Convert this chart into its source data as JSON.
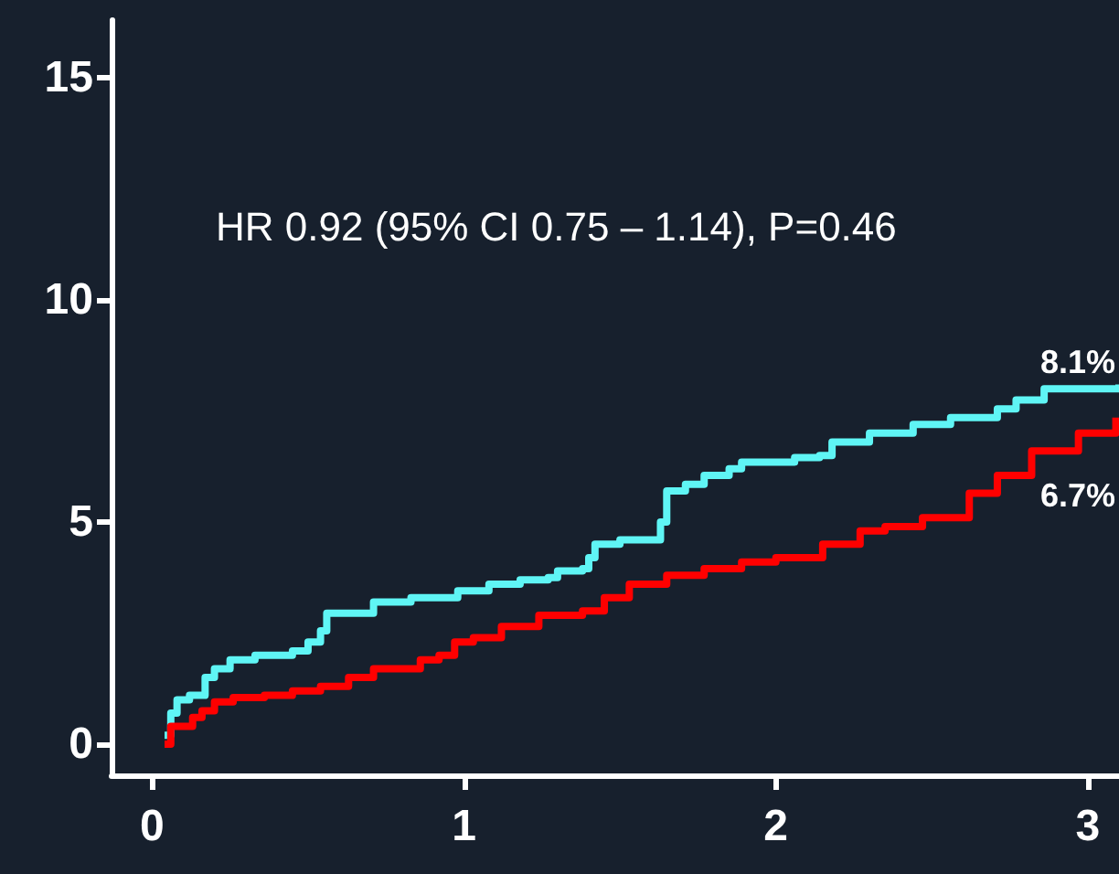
{
  "chart_data": {
    "type": "step",
    "xlim": [
      -0.13,
      3.1
    ],
    "xticks": [
      0,
      1,
      2,
      3
    ],
    "ylim": [
      -0.7,
      16.3
    ],
    "yticks": [
      0,
      5,
      10,
      15
    ],
    "grid": false,
    "annotations": [
      "HR 0.92 (95% CI 0.75 – 1.14), P=0.46",
      "8.1%",
      "6.7%"
    ],
    "series": [
      {
        "color": "#5ff5f5",
        "x": [
          0.04,
          0.06,
          0.08,
          0.12,
          0.17,
          0.2,
          0.25,
          0.33,
          0.45,
          0.5,
          0.54,
          0.56,
          0.68,
          0.71,
          0.83,
          0.98,
          1.08,
          1.18,
          1.27,
          1.3,
          1.38,
          1.4,
          1.42,
          1.5,
          1.59,
          1.63,
          1.65,
          1.71,
          1.77,
          1.85,
          1.89,
          2.0,
          2.06,
          2.14,
          2.18,
          2.3,
          2.44,
          2.56,
          2.71,
          2.77,
          2.86,
          3.1
        ],
        "values": [
          0.2,
          0.7,
          1.0,
          1.1,
          1.5,
          1.7,
          1.9,
          2.0,
          2.1,
          2.3,
          2.55,
          2.95,
          2.95,
          3.2,
          3.3,
          3.45,
          3.6,
          3.7,
          3.75,
          3.9,
          3.95,
          4.2,
          4.5,
          4.6,
          4.6,
          5.0,
          5.7,
          5.85,
          6.05,
          6.2,
          6.35,
          6.35,
          6.45,
          6.5,
          6.8,
          7.0,
          7.2,
          7.35,
          7.55,
          7.75,
          8.0,
          8.1
        ]
      },
      {
        "color": "#ff0000",
        "x": [
          0.04,
          0.06,
          0.13,
          0.16,
          0.2,
          0.26,
          0.36,
          0.45,
          0.54,
          0.63,
          0.71,
          0.86,
          0.92,
          0.97,
          1.03,
          1.12,
          1.24,
          1.38,
          1.45,
          1.53,
          1.65,
          1.77,
          1.89,
          2.0,
          2.15,
          2.27,
          2.35,
          2.47,
          2.62,
          2.71,
          2.82,
          2.97,
          3.09
        ],
        "values": [
          0.0,
          0.4,
          0.6,
          0.75,
          0.95,
          1.05,
          1.1,
          1.2,
          1.3,
          1.5,
          1.7,
          1.9,
          2.0,
          2.3,
          2.4,
          2.65,
          2.9,
          3.0,
          3.3,
          3.6,
          3.8,
          3.95,
          4.1,
          4.2,
          4.5,
          4.8,
          4.9,
          5.1,
          5.65,
          6.05,
          6.6,
          7.0,
          7.35
        ]
      }
    ]
  }
}
